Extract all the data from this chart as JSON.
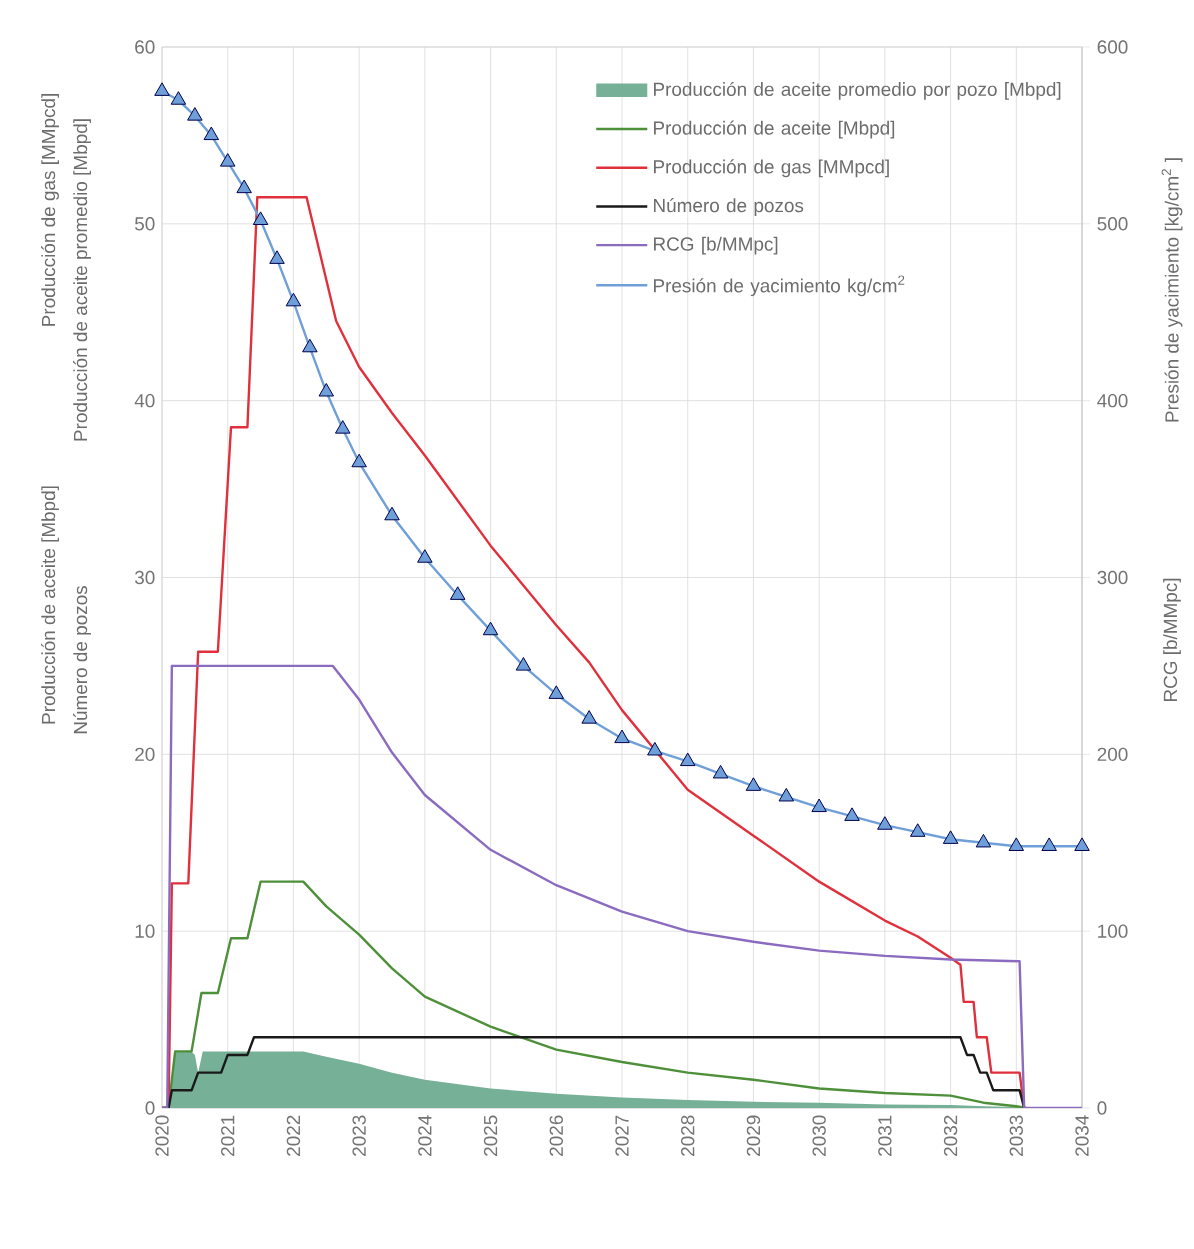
{
  "chart_data": {
    "type": "line",
    "ylabel": "Producción de gas [MMpcd]",
    "y2label": "Presión de yacimiento [kg/cm$^{2}$ ]",
    "annotations": [
      "Producción de aceite [Mbpd]",
      "Producción de aceite promedio [Mbpd]",
      "Número de pozos",
      "RCG [b/MMpc]"
    ],
    "xlim": [
      2020,
      2034
    ],
    "xticks": [
      2020,
      2021,
      2022,
      2023,
      2024,
      2025,
      2026,
      2027,
      2028,
      2029,
      2030,
      2031,
      2032,
      2033,
      2034
    ],
    "ylim": [
      0,
      60
    ],
    "yticks": [
      0,
      10,
      20,
      30,
      40,
      50,
      60
    ],
    "y2lim": [
      0,
      600
    ],
    "y2ticks": [
      0,
      100,
      200,
      300,
      400,
      500,
      600
    ],
    "grid": true,
    "legend": "top right",
    "series": [
      {
        "name": "Producción de aceite promedio por pozo [Mbpd]",
        "type": "area",
        "color": "#76b096",
        "x": [
          2020,
          2020.1,
          2020.2,
          2020.45,
          2020.5,
          2020.55,
          2020.62,
          2021,
          2022.15,
          2022.5,
          2023,
          2023.5,
          2024,
          2025,
          2026,
          2027,
          2028,
          2029,
          2030,
          2031,
          2032,
          2032.5,
          2033,
          2033.15
        ],
        "values": [
          0,
          0,
          3.2,
          3.2,
          3.0,
          2.0,
          3.2,
          3.2,
          3.2,
          2.9,
          2.5,
          2.0,
          1.6,
          1.1,
          0.8,
          0.6,
          0.45,
          0.35,
          0.3,
          0.2,
          0.17,
          0.1,
          0.05,
          0
        ]
      },
      {
        "name": "Producción de aceite [Mbpd]",
        "color": "#4e8f3a",
        "x": [
          2020,
          2020.1,
          2020.2,
          2020.45,
          2020.6,
          2020.85,
          2021.05,
          2021.3,
          2021.5,
          2022.15,
          2022.5,
          2023,
          2023.5,
          2024,
          2025,
          2026,
          2027,
          2028,
          2029,
          2030,
          2031,
          2032,
          2032.25,
          2032.5,
          2033,
          2033.15
        ],
        "values": [
          0,
          0,
          3.2,
          3.2,
          6.5,
          6.5,
          9.6,
          9.6,
          12.8,
          12.8,
          11.4,
          9.8,
          7.9,
          6.3,
          4.6,
          3.3,
          2.6,
          2.0,
          1.6,
          1.1,
          0.85,
          0.7,
          0.5,
          0.3,
          0.1,
          0
        ]
      },
      {
        "name": "Producción de gas [MMpcd]",
        "color": "#e0303c",
        "x": [
          2020,
          2020.1,
          2020.15,
          2020.4,
          2020.55,
          2020.85,
          2021.05,
          2021.3,
          2021.45,
          2022.2,
          2022.65,
          2023,
          2023.5,
          2024,
          2025,
          2026,
          2026.5,
          2027,
          2028,
          2029,
          2030,
          2031,
          2031.5,
          2032,
          2032.15,
          2032.2,
          2032.35,
          2032.4,
          2032.55,
          2032.62,
          2033.05,
          2033.12
        ],
        "values": [
          0,
          0,
          12.7,
          12.7,
          25.8,
          25.8,
          38.5,
          38.5,
          51.5,
          51.5,
          44.5,
          41.9,
          39.3,
          36.9,
          31.8,
          27.3,
          25.2,
          22.5,
          18.0,
          15.4,
          12.8,
          10.6,
          9.7,
          8.5,
          8.1,
          6.0,
          6.0,
          4.0,
          4.0,
          2.0,
          2.0,
          0
        ]
      },
      {
        "name": "Número de pozos",
        "color": "#1a1a1a",
        "x": [
          2020,
          2020.1,
          2020.15,
          2020.45,
          2020.55,
          2020.9,
          2021.0,
          2021.3,
          2021.4,
          2032.15,
          2032.25,
          2032.35,
          2032.45,
          2032.55,
          2032.65,
          2033.05,
          2033.12
        ],
        "values": [
          0,
          0,
          1,
          1,
          2,
          2,
          3,
          3,
          4,
          4,
          3,
          3,
          2,
          2,
          1,
          1,
          0
        ]
      },
      {
        "name": "RCG  [b/MMpc]",
        "color": "#8a6bbf",
        "axis": "y2",
        "x": [
          2020,
          2020.08,
          2020.15,
          2022.6,
          2023,
          2023.5,
          2024,
          2025,
          2026,
          2027,
          2028,
          2029,
          2030,
          2031,
          2032,
          2033.05,
          2033.12,
          2034
        ],
        "values": [
          0,
          0,
          250,
          250,
          231,
          201,
          177,
          146,
          126,
          111,
          100,
          94,
          89,
          86,
          84,
          83,
          0,
          0
        ]
      },
      {
        "name": "Presión de yacimiento kg/cm$^{2}$",
        "color": "#6f9fd8",
        "axis": "y2",
        "marker": "triangle",
        "x": [
          2020,
          2020.25,
          2020.5,
          2020.75,
          2021,
          2021.25,
          2021.5,
          2021.75,
          2022,
          2022.25,
          2022.5,
          2022.75,
          2023,
          2023.5,
          2024,
          2024.5,
          2025,
          2025.5,
          2026,
          2026.5,
          2027,
          2027.5,
          2028,
          2028.5,
          2029,
          2029.5,
          2030,
          2030.5,
          2031,
          2031.5,
          2032,
          2032.5,
          2033,
          2033.5,
          2034
        ],
        "values": [
          575,
          570,
          561,
          550,
          535,
          520,
          502,
          480,
          456,
          430,
          405,
          384,
          365,
          335,
          311,
          290,
          270,
          250,
          234,
          220,
          209,
          202,
          196,
          189,
          182,
          176,
          170,
          165,
          160,
          156,
          152,
          150,
          148,
          148,
          148
        ]
      }
    ]
  }
}
